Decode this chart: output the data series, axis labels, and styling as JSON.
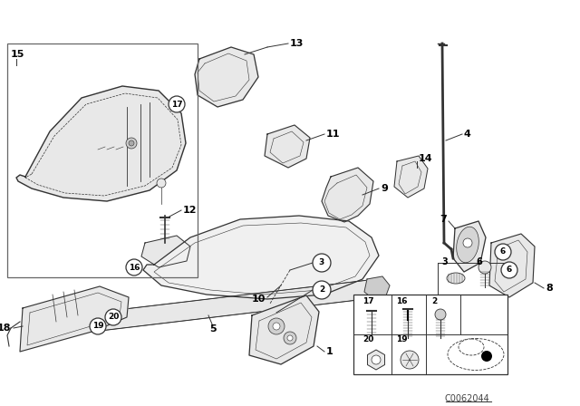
{
  "bg_color": "#ffffff",
  "fig_width": 6.4,
  "fig_height": 4.48,
  "dpi": 100,
  "watermark": "C0062044",
  "line_color": "#333333",
  "text_color": "#000000",
  "part_fill": "#e8e8e8",
  "part_fill2": "#f0f0f0"
}
